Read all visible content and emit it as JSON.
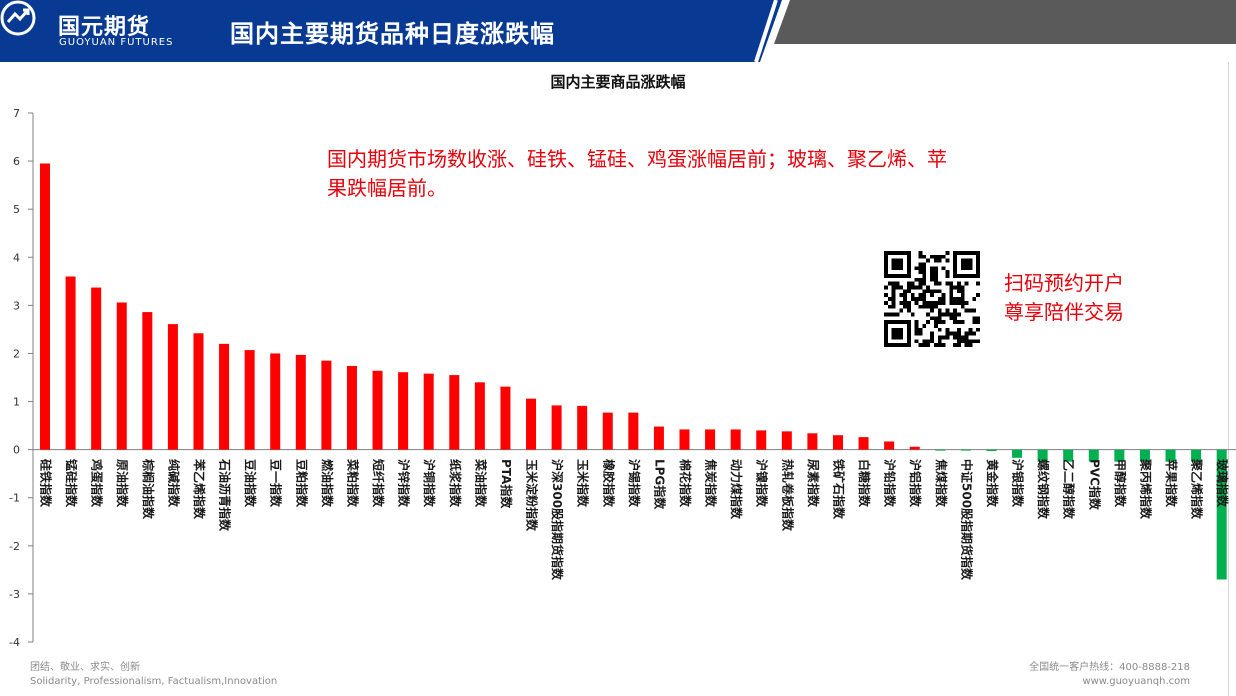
{
  "header": {
    "brand_cn": "国元期货",
    "brand_en": "GUOYUAN FUTURES",
    "title": "国内主要期货品种日度涨跌幅"
  },
  "annotation": "国内期货市场数收涨、硅铁、锰硅、鸡蛋涨幅居前；玻璃、聚乙烯、苹果跌幅居前。",
  "qr_cta": {
    "line1": "扫码预约开户",
    "line2": "尊享陪伴交易"
  },
  "footer": {
    "motto_cn": "团结、敬业、求实、创新",
    "motto_en": "Solidarity, Professionalism, Factualism,Innovation",
    "hotline": "全国统一客户热线：400-8888-218",
    "website": "www.guoyuanqh.com"
  },
  "colors": {
    "header_blue": "#083a93",
    "header_gray": "#5a5a5a",
    "up": "#ff0000",
    "down": "#00b050",
    "accent_text": "#e8000b"
  },
  "chart_data": {
    "type": "bar",
    "title": "国内主要商品涨跌幅",
    "xlabel": "",
    "ylabel": "",
    "ylim": [
      -4,
      7
    ],
    "yticks": [
      -4,
      -3,
      -2,
      -1,
      0,
      1,
      2,
      3,
      4,
      5,
      6,
      7
    ],
    "grid": false,
    "legend": "none",
    "categories": [
      "硅铁指数",
      "锰硅指数",
      "鸡蛋指数",
      "原油指数",
      "棕榈油指数",
      "纯碱指数",
      "苯乙烯指数",
      "石油沥青指数",
      "豆油指数",
      "豆一指数",
      "豆粕指数",
      "燃油指数",
      "菜粕指数",
      "短纤指数",
      "沪锌指数",
      "沪铜指数",
      "纸浆指数",
      "菜油指数",
      "PTA指数",
      "玉米淀粉指数",
      "沪深300股指期货指数",
      "玉米指数",
      "橡胶指数",
      "沪锡指数",
      "LPG指数",
      "棉花指数",
      "焦炭指数",
      "动力煤指数",
      "沪镍指数",
      "热轧卷板指数",
      "尿素指数",
      "铁矿石指数",
      "白糖指数",
      "沪铅指数",
      "沪铝指数",
      "焦煤指数",
      "中证500股指期货指数",
      "黄金指数",
      "沪银指数",
      "螺纹钢指数",
      "乙二醇指数",
      "PVC指数",
      "甲醇指数",
      "聚丙烯指数",
      "苹果指数",
      "聚乙烯指数",
      "玻璃指数"
    ],
    "values": [
      5.95,
      3.6,
      3.37,
      3.06,
      2.86,
      2.61,
      2.42,
      2.2,
      2.07,
      2.0,
      1.97,
      1.85,
      1.74,
      1.64,
      1.61,
      1.58,
      1.55,
      1.4,
      1.31,
      1.06,
      0.92,
      0.91,
      0.77,
      0.77,
      0.48,
      0.42,
      0.42,
      0.42,
      0.4,
      0.38,
      0.34,
      0.3,
      0.26,
      0.17,
      0.06,
      -0.02,
      -0.02,
      -0.03,
      -0.17,
      -0.25,
      -0.25,
      -0.25,
      -0.25,
      -0.25,
      -0.25,
      -0.25,
      -2.7
    ]
  }
}
